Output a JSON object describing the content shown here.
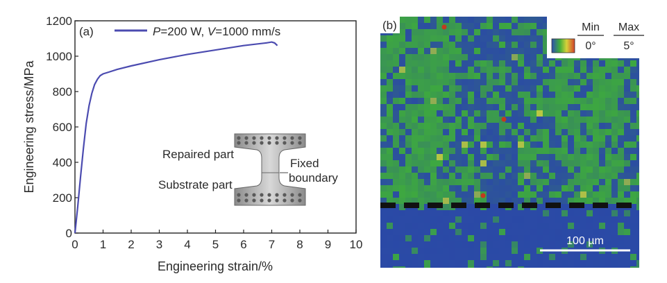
{
  "chart_data": {
    "type": "line",
    "panel_label": "(a)",
    "series": [
      {
        "name_parts": [
          "P",
          "=200 W, ",
          "V",
          "=1000 mm/s"
        ],
        "color": "#4b4bb0",
        "x": [
          0,
          0.1,
          0.2,
          0.3,
          0.4,
          0.5,
          0.6,
          0.7,
          0.8,
          0.9,
          1.0,
          1.2,
          1.5,
          2.0,
          3.0,
          4.0,
          5.0,
          6.0,
          6.8,
          7.0,
          7.1,
          7.2
        ],
        "y": [
          0,
          150,
          320,
          480,
          620,
          720,
          790,
          840,
          870,
          890,
          900,
          910,
          925,
          945,
          980,
          1010,
          1035,
          1060,
          1075,
          1080,
          1075,
          1060
        ]
      }
    ],
    "xlabel": "Engineering strain/%",
    "ylabel": "Engineering stress/MPa",
    "xlim": [
      0,
      10
    ],
    "ylim": [
      0,
      1200
    ],
    "xticks": [
      "0",
      "1",
      "2",
      "3",
      "4",
      "5",
      "6",
      "7",
      "8",
      "9",
      "10"
    ],
    "yticks": [
      "0",
      "200",
      "400",
      "600",
      "800",
      "1000",
      "1200"
    ],
    "grid": false,
    "legend_position": "top",
    "annotations": [
      "Repaired part",
      "Substrate part",
      "Fixed",
      "boundary"
    ]
  },
  "map_panel": {
    "panel_label": "(b)",
    "colorbar": {
      "min_label": "Min",
      "min_value": "0°",
      "max_label": "Max",
      "max_value": "5°"
    },
    "scale_bar": "100 µm",
    "colors": {
      "blue": "#2b4aa6",
      "green": "#3fae3a",
      "yellow": "#c8d23c",
      "red": "#c23a1e"
    }
  }
}
